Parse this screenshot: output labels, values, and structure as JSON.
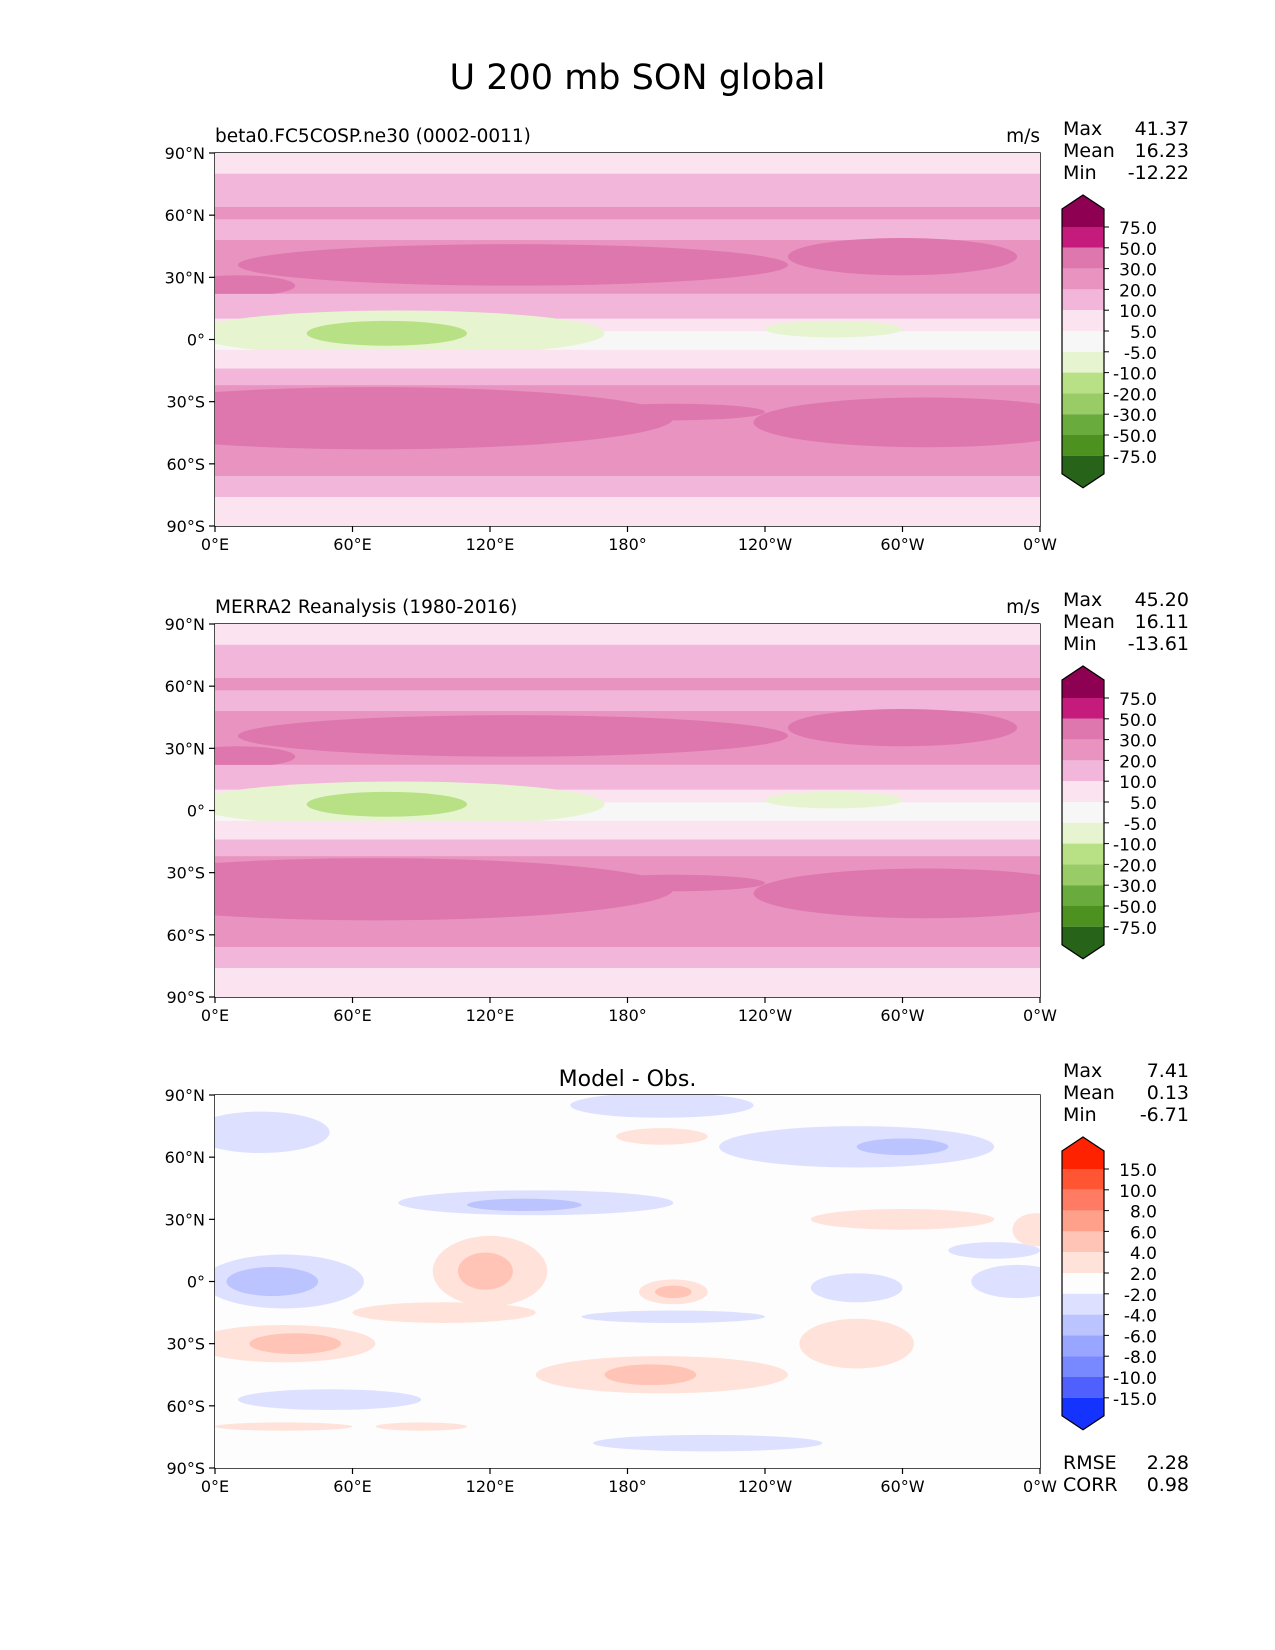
{
  "title": "U 200 mb SON global",
  "chart_data": [
    {
      "type": "heatmap",
      "panel": "test",
      "title": "beta0.FC5COSP.ne30 (0002-0011)",
      "units": "m/s",
      "stats": {
        "Max": "41.37",
        "Mean": "16.23",
        "Min": "-12.22"
      },
      "stat_labels": [
        "Max",
        "Mean",
        "Min"
      ],
      "xticks": [
        "0°E",
        "60°E",
        "120°E",
        "180°",
        "120°W",
        "60°W",
        "0°W"
      ],
      "yticks": [
        "90°N",
        "60°N",
        "30°N",
        "0°",
        "30°S",
        "60°S",
        "90°S"
      ],
      "xlim": [
        0,
        360
      ],
      "ylim": [
        -90,
        90
      ],
      "colorbar": {
        "levels": [
          "75.0",
          "50.0",
          "30.0",
          "20.0",
          "10.0",
          "5.0",
          "-5.0",
          "-10.0",
          "-20.0",
          "-30.0",
          "-50.0",
          "-75.0"
        ],
        "colors": [
          "#8e0152",
          "#c51b7d",
          "#de77ae",
          "#e993c0",
          "#f1b6da",
          "#fbe3ef",
          "#f7f7f7",
          "#e6f5d0",
          "#b8e186",
          "#99cc66",
          "#6aab3d",
          "#4d9221",
          "#276419"
        ]
      }
    },
    {
      "type": "heatmap",
      "panel": "reference",
      "title": "MERRA2 Reanalysis (1980-2016)",
      "units": "m/s",
      "stats": {
        "Max": "45.20",
        "Mean": "16.11",
        "Min": "-13.61"
      },
      "stat_labels": [
        "Max",
        "Mean",
        "Min"
      ],
      "xticks": [
        "0°E",
        "60°E",
        "120°E",
        "180°",
        "120°W",
        "60°W",
        "0°W"
      ],
      "yticks": [
        "90°N",
        "60°N",
        "30°N",
        "0°",
        "30°S",
        "60°S",
        "90°S"
      ],
      "xlim": [
        0,
        360
      ],
      "ylim": [
        -90,
        90
      ],
      "colorbar": {
        "levels": [
          "75.0",
          "50.0",
          "30.0",
          "20.0",
          "10.0",
          "5.0",
          "-5.0",
          "-10.0",
          "-20.0",
          "-30.0",
          "-50.0",
          "-75.0"
        ],
        "colors": [
          "#8e0152",
          "#c51b7d",
          "#de77ae",
          "#e993c0",
          "#f1b6da",
          "#fbe3ef",
          "#f7f7f7",
          "#e6f5d0",
          "#b8e186",
          "#99cc66",
          "#6aab3d",
          "#4d9221",
          "#276419"
        ]
      }
    },
    {
      "type": "heatmap",
      "panel": "difference",
      "title": "Model - Obs.",
      "units": "",
      "stats": {
        "Max": "7.41",
        "Mean": "0.13",
        "Min": "-6.71"
      },
      "stat_labels": [
        "Max",
        "Mean",
        "Min"
      ],
      "extra_stats": {
        "RMSE": "2.28",
        "CORR": "0.98"
      },
      "extra_labels": [
        "RMSE",
        "CORR"
      ],
      "xticks": [
        "0°E",
        "60°E",
        "120°E",
        "180°",
        "120°W",
        "60°W",
        "0°W"
      ],
      "yticks": [
        "90°N",
        "60°N",
        "30°N",
        "0°",
        "30°S",
        "60°S",
        "90°S"
      ],
      "xlim": [
        0,
        360
      ],
      "ylim": [
        -90,
        90
      ],
      "colorbar": {
        "levels": [
          "15.0",
          "10.0",
          "8.0",
          "6.0",
          "4.0",
          "2.0",
          "-2.0",
          "-4.0",
          "-6.0",
          "-8.0",
          "-10.0",
          "-15.0"
        ],
        "colors": [
          "#ff2200",
          "#ff5533",
          "#ff7b63",
          "#ffa08a",
          "#ffc4b5",
          "#ffe3da",
          "#fdfdfd",
          "#dde1ff",
          "#bcc4ff",
          "#98a6ff",
          "#7888ff",
          "#5060ff",
          "#1533ff"
        ]
      }
    }
  ]
}
